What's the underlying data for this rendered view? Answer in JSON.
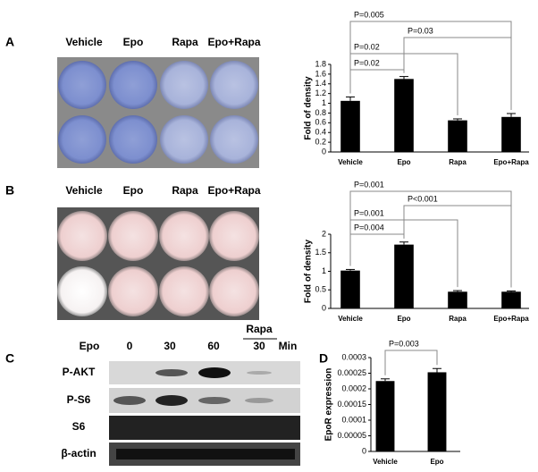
{
  "panel_letters": [
    "A",
    "B",
    "C",
    "D"
  ],
  "plates": [
    {
      "labels": [
        "Vehicle",
        "Epo",
        "Rapa",
        "Epo+Rapa"
      ]
    },
    {
      "labels": [
        "Vehicle",
        "Epo",
        "Rapa",
        "Epo+Rapa"
      ]
    }
  ],
  "blot": {
    "treatment": "Epo",
    "times": [
      "0",
      "30",
      "60",
      "30"
    ],
    "unit": "Min",
    "inhibitor": "Rapa",
    "rows": [
      "P-AKT",
      "P-S6",
      "S6",
      "β-actin"
    ]
  },
  "chart_data": [
    {
      "type": "bar",
      "y_label": "Fold of density",
      "categories": [
        "Vehicle",
        "Epo",
        "Rapa",
        "Epo+Rapa"
      ],
      "values": [
        1.05,
        1.5,
        0.65,
        0.72
      ],
      "errors": [
        0.08,
        0.05,
        0.03,
        0.07
      ],
      "color": "#000000",
      "ylim": [
        0,
        1.8
      ],
      "yticks": [
        0,
        0.2,
        0.4,
        0.6,
        0.8,
        1,
        1.2,
        1.4,
        1.6,
        1.8
      ],
      "annotations": [
        {
          "text": "P=0.02",
          "between": [
            "Vehicle",
            "Epo"
          ]
        },
        {
          "text": "P=0.02",
          "between": [
            "Vehicle",
            "Rapa"
          ]
        },
        {
          "text": "P=0.03",
          "between": [
            "Epo",
            "Epo+Rapa"
          ]
        },
        {
          "text": "P=0.005",
          "between": [
            "Vehicle",
            "Epo+Rapa"
          ]
        }
      ]
    },
    {
      "type": "bar",
      "y_label": "Fold of density",
      "categories": [
        "Vehicle",
        "Epo",
        "Rapa",
        "Epo+Rapa"
      ],
      "values": [
        1.02,
        1.72,
        0.45,
        0.45
      ],
      "errors": [
        0.03,
        0.07,
        0.03,
        0.02
      ],
      "color": "#000000",
      "ylim": [
        0,
        2
      ],
      "yticks": [
        0,
        0.5,
        1,
        1.5,
        2
      ],
      "annotations": [
        {
          "text": "P=0.004",
          "between": [
            "Vehicle",
            "Epo"
          ]
        },
        {
          "text": "P=0.001",
          "between": [
            "Vehicle",
            "Rapa"
          ]
        },
        {
          "text": "P<0.001",
          "between": [
            "Epo",
            "Epo+Rapa"
          ]
        },
        {
          "text": "P=0.001",
          "between": [
            "Vehicle",
            "Epo+Rapa"
          ]
        }
      ]
    },
    {
      "type": "bar",
      "y_label": "EpoR expression",
      "categories": [
        "Vehicle",
        "Epo"
      ],
      "values": [
        0.000225,
        0.000253
      ],
      "errors": [
        7e-06,
        1.2e-05
      ],
      "color": "#000000",
      "ylim": [
        0,
        0.0003
      ],
      "yticks": [
        0,
        5e-05,
        0.0001,
        0.00015,
        0.0002,
        0.00025,
        0.0003
      ],
      "annotations": [
        {
          "text": "P=0.003",
          "between": [
            "Vehicle",
            "Epo"
          ]
        }
      ]
    }
  ]
}
